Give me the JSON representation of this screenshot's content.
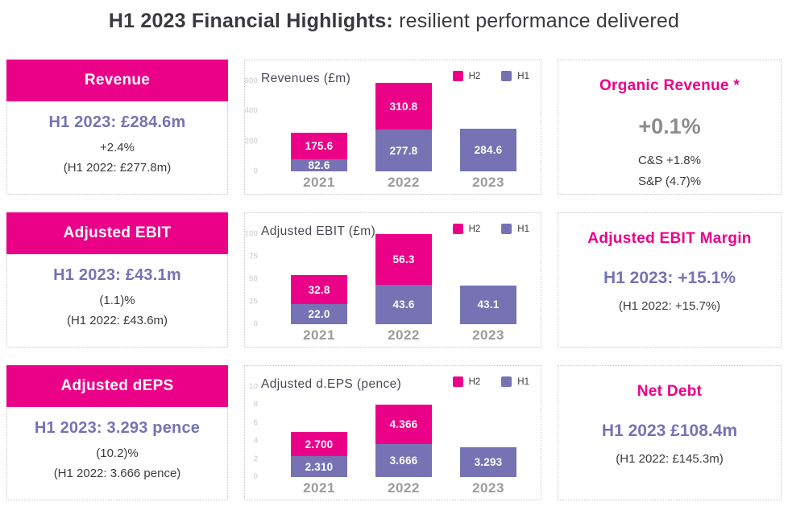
{
  "title": {
    "bold": "H1 2023 Financial Highlights:",
    "regular": "resilient performance delivered"
  },
  "colors": {
    "magenta": "#eb0088",
    "purple_bar": "#7672b3",
    "purple_text": "#7672b3",
    "gray_value": "#8c8c8c"
  },
  "rows": [
    {
      "left": {
        "header": "Revenue",
        "headline": "H1 2023: £284.6m",
        "line1": "+2.4%",
        "line2": "(H1 2022: £277.8m)"
      },
      "right": {
        "title": "Organic Revenue *",
        "value": "+0.1%",
        "lines": [
          "C&S +1.8%",
          "S&P (4.7)%"
        ]
      }
    },
    {
      "left": {
        "header": "Adjusted EBIT",
        "headline": "H1 2023: £43.1m",
        "line1": "(1.1)%",
        "line2": "(H1 2022: £43.6m)"
      },
      "right": {
        "title": "Adjusted EBIT Margin",
        "value": "H1 2023: +15.1%",
        "lines": [
          "(H1 2022: +15.7%)"
        ]
      }
    },
    {
      "left": {
        "header": "Adjusted dEPS",
        "headline": "H1 2023: 3.293 pence",
        "line1": "(10.2)%",
        "line2": "(H1 2022: 3.666 pence)"
      },
      "right": {
        "title": "Net Debt",
        "value": "H1 2023 £108.4m",
        "lines": [
          "(H1 2022: £145.3m)"
        ]
      }
    }
  ],
  "chart_data": [
    {
      "type": "bar",
      "stacked": true,
      "title": "Revenues (£m)",
      "categories": [
        "2021",
        "2022",
        "2023"
      ],
      "series": [
        {
          "name": "H2",
          "color": "#eb0088",
          "values": [
            175.6,
            310.8,
            null
          ],
          "labels": [
            "175.6",
            "310.8",
            null
          ]
        },
        {
          "name": "H1",
          "color": "#7672b3",
          "values": [
            82.6,
            277.8,
            284.6
          ],
          "labels": [
            "82.6",
            "277.8",
            "284.6"
          ]
        }
      ],
      "ylim": [
        0,
        600
      ],
      "yticks": [
        0,
        200,
        400,
        600
      ],
      "grid": false,
      "legend_position": "top-right"
    },
    {
      "type": "bar",
      "stacked": true,
      "title": "Adjusted EBIT (£m)",
      "categories": [
        "2021",
        "2022",
        "2023"
      ],
      "series": [
        {
          "name": "H2",
          "color": "#eb0088",
          "values": [
            32.8,
            56.3,
            null
          ],
          "labels": [
            "32.8",
            "56.3",
            null
          ]
        },
        {
          "name": "H1",
          "color": "#7672b3",
          "values": [
            22.0,
            43.6,
            43.1
          ],
          "labels": [
            "22.0",
            "43.6",
            "43.1"
          ]
        }
      ],
      "ylim": [
        0,
        100
      ],
      "yticks": [
        0,
        25,
        50,
        75,
        100
      ],
      "grid": false,
      "legend_position": "top-right"
    },
    {
      "type": "bar",
      "stacked": true,
      "title": "Adjusted d.EPS (pence)",
      "categories": [
        "2021",
        "2022",
        "2023"
      ],
      "series": [
        {
          "name": "H2",
          "color": "#eb0088",
          "values": [
            2.7,
            4.366,
            null
          ],
          "labels": [
            "2.700",
            "4.366",
            null
          ]
        },
        {
          "name": "H1",
          "color": "#7672b3",
          "values": [
            2.31,
            3.666,
            3.293
          ],
          "labels": [
            "2.310",
            "3.666",
            "3.293"
          ]
        }
      ],
      "ylim": [
        0,
        10
      ],
      "yticks": [
        0,
        2,
        4,
        6,
        8,
        10
      ],
      "grid": false,
      "legend_position": "top-right"
    }
  ]
}
